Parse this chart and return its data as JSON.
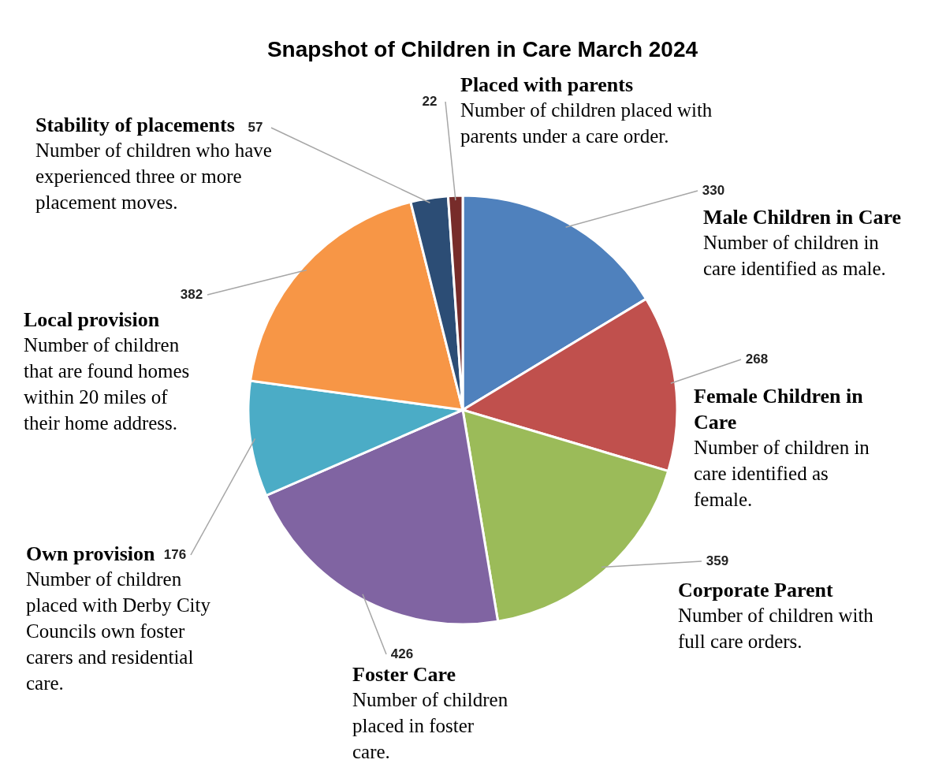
{
  "chart_data": {
    "type": "pie",
    "title": "Snapshot of Children in Care March 2024",
    "categories": [
      "Male Children in Care",
      "Female Children in Care",
      "Corporate Parent",
      "Foster Care",
      "Own provision",
      "Local provision",
      "Stability of placements",
      "Placed with parents"
    ],
    "values": [
      330,
      268,
      359,
      426,
      176,
      382,
      57,
      22
    ],
    "colors": [
      "#4f81bd",
      "#c0504d",
      "#9bbb59",
      "#8064a2",
      "#4bacc6",
      "#f79646",
      "#2c4d75",
      "#772c2a"
    ],
    "data_labels": true,
    "annotations": [
      "Number of children in care identified as male.",
      "Number of children in care identified as female.",
      "Number of children with full care orders.",
      "Number of children placed in foster care.",
      "Number of children placed with Derby City Councils own foster carers and residential care.",
      "Number of children that are found homes within 20 miles of their home address.",
      "Number of children who have experienced three or more placement moves.",
      "Number of children placed with parents under a care order."
    ]
  }
}
